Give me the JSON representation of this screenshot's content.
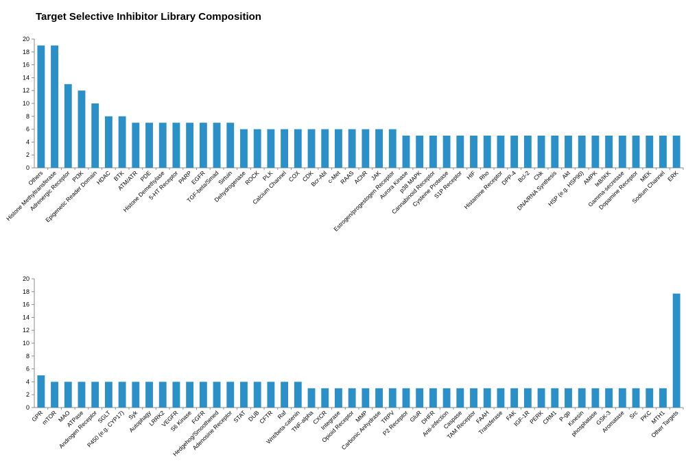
{
  "title": "Target Selective Inhibitor Library Composition",
  "colors": {
    "bar": "#2b8fc8",
    "axis": "#8a8a8a"
  },
  "chart_data": [
    {
      "type": "bar",
      "ylim": [
        0,
        20
      ],
      "yticks": [
        0,
        2,
        4,
        6,
        8,
        10,
        12,
        14,
        16,
        18,
        20
      ],
      "grid": false,
      "categories": [
        "Others",
        "Histone Methyltransferase",
        "Adrenergic Receptor",
        "PI3K",
        "Epigenetic Reader Domain",
        "HDAC",
        "BTK",
        "ATM/ATR",
        "PDE",
        "Histone Demethylase",
        "5-HT Receptor",
        "PARP",
        "EGFR",
        "TGF-beta/Smad",
        "Sirtuin",
        "Dehydrogenase",
        "ROCK",
        "PLK",
        "Calcium Channel",
        "COX",
        "CDK",
        "Bcr-Abl",
        "c-Met",
        "RAAS",
        "AChR",
        "JAK",
        "Estrogen/progestogen Receptor",
        "Aurora Kinase",
        "p38 MAPK",
        "Cannabinoid Receptor",
        "Cysteine Protease",
        "S1P Receptor",
        "HIF",
        "Rho",
        "Histamine Receptor",
        "DPP-4",
        "Bcl-2",
        "Chk",
        "DNA/RNA Synthesis",
        "Akt",
        "HSP (e.g. HSP90)",
        "AMPK",
        "IκB/IKK",
        "Gamma-secretase",
        "Dopamine Receptor",
        "MEK",
        "Sodium Channel",
        "ERK"
      ],
      "values": [
        19,
        19,
        13,
        12,
        10,
        8,
        8,
        7,
        7,
        7,
        7,
        7,
        7,
        7,
        7,
        6,
        6,
        6,
        6,
        6,
        6,
        6,
        6,
        6,
        6,
        6,
        6,
        5,
        5,
        5,
        5,
        5,
        5,
        5,
        5,
        5,
        5,
        5,
        5,
        5,
        5,
        5,
        5,
        5,
        5,
        5,
        5,
        5
      ]
    },
    {
      "type": "bar",
      "ylim": [
        0,
        20
      ],
      "yticks": [
        0,
        2,
        4,
        6,
        8,
        10,
        12,
        14,
        16,
        18,
        20
      ],
      "grid": false,
      "categories": [
        "GPR",
        "mTOR",
        "MAO",
        "ATPase",
        "Androgen Receptor",
        "SGLT",
        "P450 (e.g. CYP17)",
        "Syk",
        "Autophagy",
        "LRRK2",
        "VEGFR",
        "S6 Kinase",
        "FGFR",
        "Hedgehog/Smoothened",
        "Adenosine Receptor",
        "STAT",
        "DUB",
        "CFTR",
        "Raf",
        "Wnt/beta-catenin",
        "TNF-alpha",
        "CXCR",
        "Integrase",
        "Opioid Receptor",
        "MMP",
        "Carbonic Anhydrase",
        "TRPV",
        "P2 Receptor",
        "GluR",
        "DHFR",
        "Anti-infection",
        "Caspase",
        "TAM Receptor",
        "FAAH",
        "Transferase",
        "FAK",
        "IGF-1R",
        "PERK",
        "CRM1",
        "P-gp",
        "Kinesin",
        "phosphatase",
        "GSK-3",
        "Aromatase",
        "Src",
        "PKC",
        "MTH1",
        "Other Targets"
      ],
      "values": [
        5,
        4,
        4,
        4,
        4,
        4,
        4,
        4,
        4,
        4,
        4,
        4,
        4,
        4,
        4,
        4,
        4,
        4,
        4,
        4,
        3,
        3,
        3,
        3,
        3,
        3,
        3,
        3,
        3,
        3,
        3,
        3,
        3,
        3,
        3,
        3,
        3,
        3,
        3,
        3,
        3,
        3,
        3,
        3,
        3,
        3,
        3,
        17.7
      ]
    }
  ]
}
